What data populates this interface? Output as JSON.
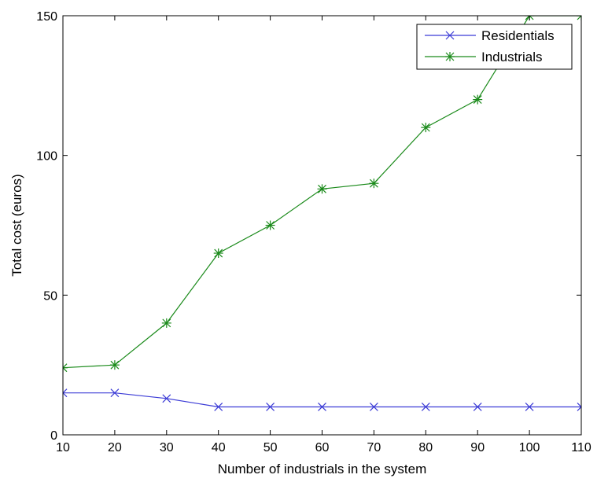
{
  "chart_data": {
    "type": "line",
    "xlabel": "Number of industrials in the system",
    "ylabel": "Total cost (euros)",
    "xlim": [
      10,
      110
    ],
    "ylim": [
      0,
      150
    ],
    "x_ticks": [
      10,
      20,
      30,
      40,
      50,
      60,
      70,
      80,
      90,
      100,
      110
    ],
    "y_ticks": [
      0,
      50,
      100,
      150
    ],
    "x": [
      10,
      20,
      30,
      40,
      50,
      60,
      70,
      80,
      90,
      100,
      110
    ],
    "series": [
      {
        "name": "Residentials",
        "color": "#3b3bd6",
        "marker": "x",
        "values": [
          15,
          15,
          13,
          10,
          10,
          10,
          10,
          10,
          10,
          10,
          10
        ]
      },
      {
        "name": "Industrials",
        "color": "#1a8a1a",
        "marker": "asterisk",
        "values": [
          24,
          25,
          40,
          65,
          75,
          88,
          90,
          110,
          120,
          150,
          150
        ]
      }
    ],
    "grid": false,
    "legend_position": "top-right"
  }
}
